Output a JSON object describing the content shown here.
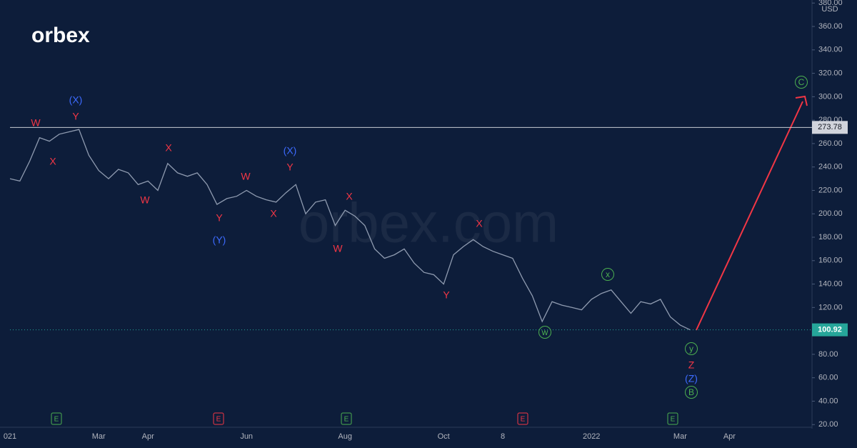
{
  "chart_data": {
    "type": "line",
    "logo": "orbex",
    "watermark": "orbex.com",
    "currency": "USD",
    "categories": [
      "021",
      null,
      null,
      null,
      null,
      null,
      null,
      null,
      null,
      "Mar",
      null,
      null,
      null,
      null,
      "Apr",
      null,
      null,
      null,
      null,
      null,
      null,
      null,
      null,
      null,
      "Jun",
      null,
      null,
      null,
      null,
      null,
      null,
      null,
      null,
      null,
      "Aug",
      null,
      null,
      null,
      null,
      null,
      null,
      null,
      null,
      null,
      "Oct",
      null,
      null,
      null,
      null,
      null,
      "8",
      null,
      null,
      null,
      null,
      null,
      null,
      null,
      null,
      "2022",
      null,
      null,
      null,
      null,
      null,
      null,
      null,
      null,
      "Mar",
      null,
      null,
      null,
      null,
      "Apr"
    ],
    "values": [
      230,
      228,
      245,
      265,
      262,
      268,
      270,
      272,
      250,
      237,
      230,
      238,
      235,
      225,
      228,
      220,
      243,
      235,
      232,
      235,
      225,
      208,
      213,
      215,
      220,
      215,
      212,
      210,
      218,
      225,
      200,
      210,
      212,
      190,
      203,
      198,
      190,
      170,
      162,
      165,
      170,
      158,
      150,
      148,
      140,
      165,
      172,
      178,
      172,
      168,
      165,
      162,
      145,
      130,
      108,
      125,
      122,
      120,
      118,
      127,
      132,
      135,
      125,
      115,
      125,
      123,
      127,
      112,
      105,
      100.92,
      null,
      null,
      null,
      null
    ],
    "value_labels": [
      null,
      null,
      null,
      null,
      null,
      null,
      null,
      null,
      null,
      null,
      null,
      null,
      null,
      null,
      null,
      null,
      null,
      null,
      null,
      null,
      null,
      null,
      null,
      null,
      null,
      null,
      null,
      null,
      null,
      null,
      null,
      null,
      null,
      null,
      null,
      null,
      null,
      null,
      null,
      null,
      null,
      null,
      null,
      null,
      null,
      null,
      null,
      null,
      null,
      null,
      null,
      null,
      null,
      null,
      null,
      null,
      null,
      null,
      null,
      null,
      null,
      null,
      null,
      null,
      null,
      null,
      null,
      null,
      null,
      "100.92",
      null,
      null,
      null,
      null
    ],
    "color": "#8f9bb0",
    "last_price_color": "#26a69a",
    "level": {
      "value": 273.78,
      "label": "273.78"
    },
    "ylim": [
      0,
      382.6
    ],
    "yticks": [
      {
        "value": 20,
        "label": "20.00"
      },
      {
        "value": 40,
        "label": "40.00"
      },
      {
        "value": 60,
        "label": "60.00"
      },
      {
        "value": 80,
        "label": "80.00"
      },
      {
        "value": 100,
        "label": "100.00"
      },
      {
        "value": 120,
        "label": "120.00"
      },
      {
        "value": 140,
        "label": "140.00"
      },
      {
        "value": 160,
        "label": "160.00"
      },
      {
        "value": 180,
        "label": "180.00"
      },
      {
        "value": 200,
        "label": "200.00"
      },
      {
        "value": 220,
        "label": "220.00"
      },
      {
        "value": 240,
        "label": "240.00"
      },
      {
        "value": 260,
        "label": "260.00"
      },
      {
        "value": 280,
        "label": "280.00"
      },
      {
        "value": 300,
        "label": "300.00"
      },
      {
        "value": 320,
        "label": "320.00"
      },
      {
        "value": 340,
        "label": "340.00"
      },
      {
        "value": 360,
        "label": "360.00"
      },
      {
        "value": 380,
        "label": "380.00"
      }
    ],
    "grid": false,
    "annotations": [
      {
        "text": "W",
        "color": "#f23645"
      },
      {
        "text": "Y",
        "color": "#f23645"
      },
      {
        "text": "(X)",
        "color": "#3d6bff"
      },
      {
        "text": "X",
        "color": "#f23645"
      },
      {
        "text": "X",
        "color": "#f23645"
      },
      {
        "text": "W",
        "color": "#f23645"
      },
      {
        "text": "Y",
        "color": "#f23645"
      },
      {
        "text": "(Y)",
        "color": "#3d6bff"
      },
      {
        "text": "W",
        "color": "#f23645"
      },
      {
        "text": "X",
        "color": "#f23645"
      },
      {
        "text": "(X)",
        "color": "#3d6bff"
      },
      {
        "text": "Y",
        "color": "#f23645"
      },
      {
        "text": "X",
        "color": "#f23645"
      },
      {
        "text": "W",
        "color": "#f23645"
      },
      {
        "text": "X",
        "color": "#f23645"
      },
      {
        "text": "Y",
        "color": "#f23645"
      },
      {
        "text": "x",
        "color": "#4caf50",
        "circled": true
      },
      {
        "text": "w",
        "color": "#4caf50",
        "circled": true
      },
      {
        "text": "y",
        "color": "#4caf50",
        "circled": true
      },
      {
        "text": "Z",
        "color": "#f23645"
      },
      {
        "text": "(Z)",
        "color": "#3d6bff"
      },
      {
        "text": "B",
        "color": "#4caf50",
        "circled": true
      },
      {
        "text": "C",
        "color": "#4caf50",
        "circled": true
      }
    ],
    "events": [
      {
        "text": "E",
        "color": "#4caf50"
      },
      {
        "text": "E",
        "color": "#f23645"
      },
      {
        "text": "E",
        "color": "#4caf50"
      },
      {
        "text": "E",
        "color": "#f23645"
      },
      {
        "text": "E",
        "color": "#4caf50"
      }
    ]
  }
}
